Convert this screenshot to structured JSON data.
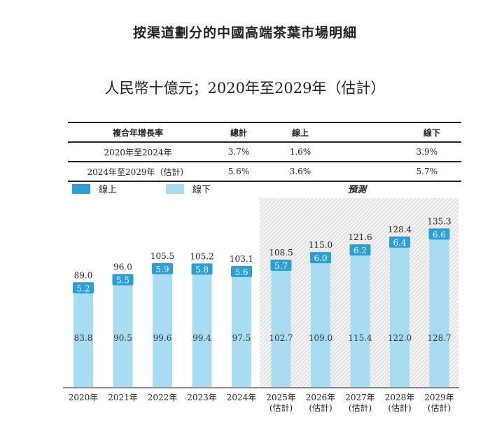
{
  "title": "按渠道劃分的中國高端茶葉市場明細",
  "subtitle": "人民幣十億元；2020年至2029年（估計）",
  "cagr_table": {
    "headers": [
      "複合年增長率",
      "總計",
      "線上",
      "線下"
    ],
    "rows": [
      [
        "2020年至2024年",
        "3.7%",
        "1.6%",
        "3.9%"
      ],
      [
        "2024年至2029年（估計）",
        "5.6%",
        "3.6%",
        "5.7%"
      ]
    ]
  },
  "legend": {
    "online": "線上",
    "offline": "線下",
    "forecast": "預測"
  },
  "colors": {
    "online": "#2a9fd8",
    "offline": "#a7dcf2"
  },
  "chart_data": {
    "type": "bar",
    "stacked": true,
    "categories": [
      "2020年",
      "2021年",
      "2022年",
      "2023年",
      "2024年",
      "2025年\n(估計)",
      "2026年\n(估計)",
      "2027年\n(估計)",
      "2028年\n(估計)",
      "2029年\n(估計)"
    ],
    "series": [
      {
        "name": "線下",
        "values": [
          83.8,
          90.5,
          99.6,
          99.4,
          97.5,
          102.7,
          109.0,
          115.4,
          122.0,
          128.7
        ]
      },
      {
        "name": "線上",
        "values": [
          5.2,
          5.5,
          5.9,
          5.8,
          5.6,
          5.7,
          6.0,
          6.2,
          6.4,
          6.6
        ]
      }
    ],
    "totals": [
      "89.0",
      "96.0",
      "105.5",
      "105.2",
      "103.1",
      "108.5",
      "115.0",
      "121.6",
      "128.4",
      "135.3"
    ],
    "offline_labels": [
      "83.8",
      "90.5",
      "99.6",
      "99.4",
      "97.5",
      "102.7",
      "109.0",
      "115.4",
      "122.0",
      "128.7"
    ],
    "online_labels": [
      "5.2",
      "5.5",
      "5.9",
      "5.8",
      "5.6",
      "5.7",
      "6.0",
      "6.2",
      "6.4",
      "6.6"
    ],
    "forecast_from": "2025年"
  }
}
